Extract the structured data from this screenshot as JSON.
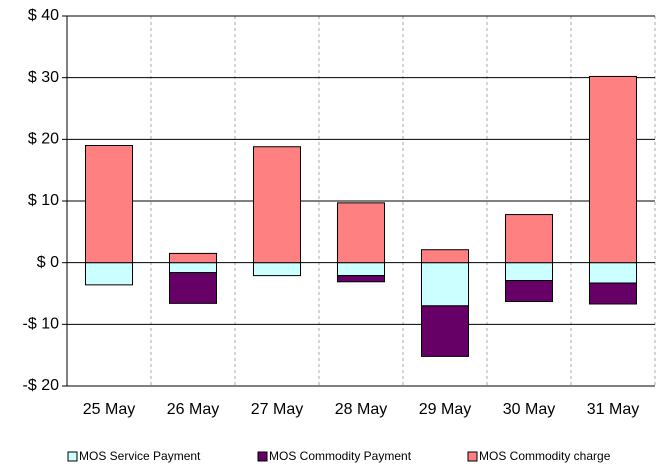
{
  "chart_data": {
    "type": "stacked_bar",
    "categories": [
      "25 May",
      "26 May",
      "27 May",
      "28 May",
      "29 May",
      "30 May",
      "31 May"
    ],
    "series": [
      {
        "name": "MOS Service Payment",
        "color": "#ccffff",
        "values": [
          -3.6,
          -1.6,
          -2.1,
          -2.1,
          -7.0,
          -2.9,
          -3.3
        ]
      },
      {
        "name": "MOS Commodity Payment",
        "color": "#660066",
        "values": [
          0,
          -5.0,
          0,
          -1.0,
          -8.2,
          -3.4,
          -3.4
        ]
      },
      {
        "name": "MOS Commodity charge",
        "color": "#ff8080",
        "values": [
          19.0,
          1.5,
          18.8,
          9.7,
          2.1,
          7.8,
          30.2
        ]
      }
    ],
    "ylim": [
      -20,
      40
    ],
    "yticks": [
      {
        "value": -20,
        "label": "-$ 20"
      },
      {
        "value": -10,
        "label": "-$ 10"
      },
      {
        "value": 0,
        "label": "$ 0"
      },
      {
        "value": 10,
        "label": "$ 10"
      },
      {
        "value": 20,
        "label": "$ 20"
      },
      {
        "value": 30,
        "label": "$ 30"
      },
      {
        "value": 40,
        "label": "$ 40"
      }
    ],
    "grid": true,
    "legend": "bottom"
  }
}
